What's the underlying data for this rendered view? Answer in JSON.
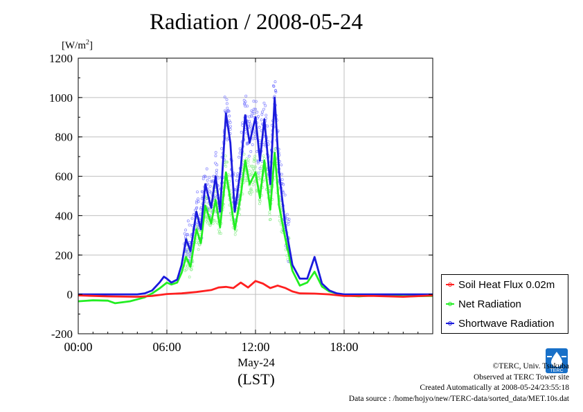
{
  "title": "Radiation / 2008-05-24",
  "unit_label": "[W/m",
  "unit_sup": "2",
  "unit_close": "]",
  "date_label": "May-24",
  "timezone_label": "(LST)",
  "credits": {
    "line1": "©TERC, Univ. Tsukuba",
    "line2": "Observed at TERC Tower site",
    "line3": "Created Automatically at 2008-05-24/23:55:18",
    "line4": "Data source : /home/hojyo/new/TERC-data/sorted_data/MET.10s.dat"
  },
  "logo_text": "TERC",
  "colors": {
    "soil": "#ff2020",
    "net": "#22ee22",
    "shortwave": "#1a1add",
    "shortwave_points": "#8080ff",
    "net_points": "#99ee99",
    "grid": "#bfbfbf",
    "logo": "#1870c8"
  },
  "chart_data": {
    "type": "line",
    "title": "Radiation / 2008-05-24",
    "xlabel": "May-24 (LST)",
    "ylabel": "[W/m2]",
    "xlim": [
      0,
      24
    ],
    "ylim": [
      -200,
      1200
    ],
    "yticks": [
      -200,
      0,
      200,
      400,
      600,
      800,
      1000,
      1200
    ],
    "yticklabels": [
      "-200",
      "0",
      "200",
      "400",
      "600",
      "800",
      "1000",
      "1200"
    ],
    "xticks": [
      0,
      6,
      12,
      18
    ],
    "xticklabels": [
      "00:00",
      "06:00",
      "12:00",
      "18:00"
    ],
    "grid": true,
    "legend_position": "bottom-right outside",
    "series": [
      {
        "name": "Soil Heat Flux 0.02m",
        "color": "#ff2020",
        "x": [
          0,
          2,
          4,
          5,
          6,
          7,
          8,
          9,
          9.5,
          10,
          10.5,
          11,
          11.5,
          12,
          12.5,
          13,
          13.5,
          14,
          14.5,
          15,
          16,
          17,
          18,
          20,
          22,
          24
        ],
        "y": [
          -5,
          -10,
          -12,
          -8,
          2,
          5,
          12,
          22,
          35,
          38,
          32,
          60,
          35,
          68,
          55,
          32,
          45,
          33,
          15,
          5,
          4,
          0,
          -8,
          -8,
          -12,
          -5
        ]
      },
      {
        "name": "Net Radiation",
        "color": "#22ee22",
        "x": [
          0,
          1,
          2,
          2.5,
          3,
          3.5,
          4,
          4.5,
          5,
          5.5,
          6,
          6.3,
          6.7,
          7,
          7.3,
          7.6,
          8,
          8.3,
          8.6,
          9,
          9.3,
          9.6,
          10,
          10.3,
          10.6,
          11,
          11.3,
          11.6,
          12,
          12.3,
          12.6,
          13,
          13.3,
          13.6,
          14,
          14.5,
          15,
          15.5,
          16,
          16.5,
          17,
          18,
          19,
          20,
          22,
          24
        ],
        "y": [
          -35,
          -30,
          -32,
          -45,
          -40,
          -35,
          -25,
          -15,
          5,
          30,
          60,
          50,
          60,
          110,
          190,
          140,
          330,
          260,
          450,
          360,
          480,
          340,
          620,
          480,
          330,
          500,
          680,
          560,
          620,
          490,
          680,
          430,
          720,
          450,
          290,
          120,
          45,
          60,
          115,
          40,
          15,
          -5,
          -10,
          -5,
          -10,
          -8
        ]
      },
      {
        "name": "Shortwave Radiation",
        "color": "#1a1add",
        "x": [
          0,
          1,
          2,
          3,
          4,
          4.5,
          5,
          5.5,
          5.8,
          6,
          6.3,
          6.7,
          7,
          7.3,
          7.6,
          8,
          8.3,
          8.6,
          9,
          9.3,
          9.6,
          10,
          10.3,
          10.6,
          11,
          11.3,
          11.6,
          12,
          12.3,
          12.6,
          13,
          13.3,
          13.6,
          14,
          14.5,
          15,
          15.5,
          16,
          16.5,
          17,
          17.5,
          18,
          19,
          20,
          22,
          24
        ],
        "y": [
          0,
          0,
          0,
          0,
          0,
          5,
          20,
          60,
          90,
          80,
          60,
          75,
          150,
          280,
          220,
          420,
          330,
          560,
          440,
          600,
          420,
          920,
          770,
          420,
          640,
          910,
          770,
          900,
          680,
          890,
          560,
          1000,
          620,
          360,
          150,
          80,
          80,
          190,
          55,
          20,
          5,
          0,
          0,
          0,
          0,
          0
        ]
      }
    ]
  },
  "legend": [
    {
      "label": "Soil Heat Flux 0.02m",
      "color": "#ff2020"
    },
    {
      "label": "Net Radiation",
      "color": "#22ee22"
    },
    {
      "label": "Shortwave Radiation",
      "color": "#1a1add"
    }
  ]
}
